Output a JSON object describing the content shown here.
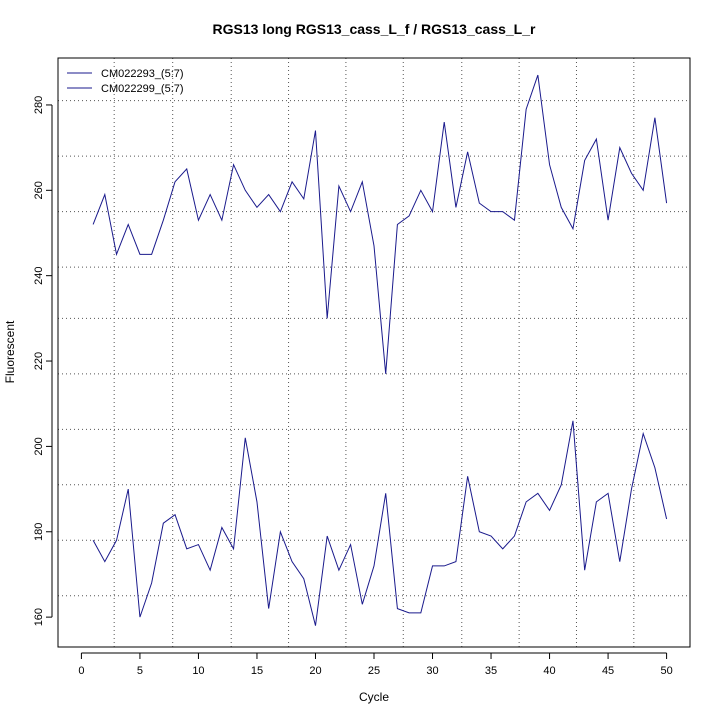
{
  "chart_data": {
    "type": "line",
    "title": "RGS13 long RGS13_cass_L_f / RGS13_cass_L_r",
    "xlabel": "Cycle",
    "ylabel": "Fluorescent",
    "xlim": [
      -2,
      52
    ],
    "ylim": [
      153,
      291
    ],
    "xticks": [
      0,
      5,
      10,
      15,
      20,
      25,
      30,
      35,
      40,
      45,
      50
    ],
    "yticks": [
      160,
      180,
      200,
      220,
      240,
      260,
      280
    ],
    "grid": true,
    "grid_x_dotted": [
      2.8,
      7.8,
      12.8,
      17.7,
      22.6,
      27.5,
      32.5,
      37.4,
      42.3,
      47.2
    ],
    "grid_y_dotted": [
      165,
      178,
      191,
      204,
      217,
      230,
      242,
      255,
      268,
      281
    ],
    "legend_position": "top-left",
    "line_color": "#1a1a8c",
    "x": [
      1,
      2,
      3,
      4,
      5,
      6,
      7,
      8,
      9,
      10,
      11,
      12,
      13,
      14,
      15,
      16,
      17,
      18,
      19,
      20,
      21,
      22,
      23,
      24,
      25,
      26,
      27,
      28,
      29,
      30,
      31,
      32,
      33,
      34,
      35,
      36,
      37,
      38,
      39,
      40,
      41,
      42,
      43,
      44,
      45,
      46,
      47,
      48,
      49,
      50
    ],
    "series": [
      {
        "name": "CM022293_(5:7)",
        "values": [
          252,
          259,
          245,
          252,
          245,
          245,
          253,
          262,
          265,
          253,
          259,
          253,
          266,
          260,
          256,
          259,
          255,
          262,
          258,
          274,
          230,
          261,
          255,
          262,
          247,
          217,
          252,
          254,
          260,
          255,
          276,
          256,
          269,
          257,
          255,
          255,
          253,
          279,
          287,
          266,
          256,
          251,
          267,
          272,
          253,
          270,
          264,
          260,
          277,
          257
        ]
      },
      {
        "name": "CM022299_(5:7)",
        "values": [
          178,
          173,
          178,
          190,
          160,
          168,
          182,
          184,
          176,
          177,
          171,
          181,
          176,
          202,
          187,
          162,
          180,
          173,
          169,
          158,
          179,
          171,
          177,
          163,
          172,
          189,
          162,
          161,
          161,
          172,
          172,
          173,
          193,
          180,
          179,
          176,
          179,
          187,
          189,
          185,
          191,
          206,
          171,
          187,
          189,
          173,
          190,
          203,
          195,
          183
        ]
      }
    ]
  }
}
